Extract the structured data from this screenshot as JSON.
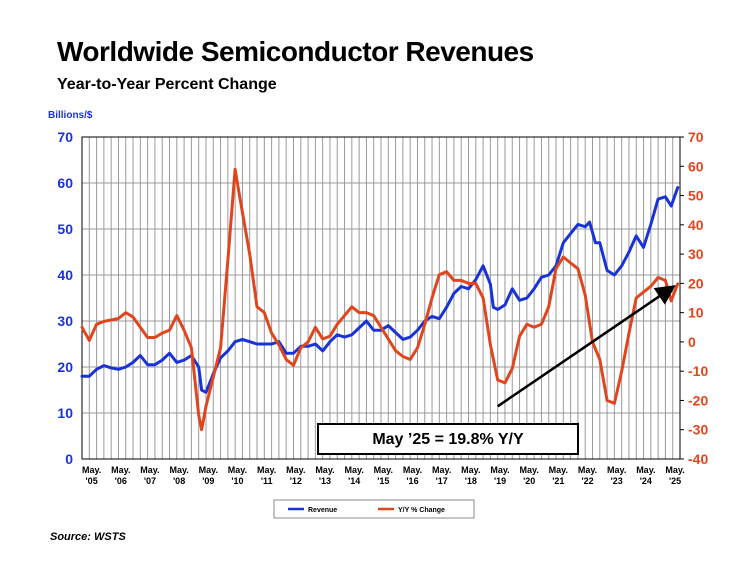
{
  "chart_data": {
    "type": "line",
    "title": "Worldwide Semiconductor Revenues",
    "subtitle": "Year-to-Year Percent Change",
    "left_axis": {
      "unit_label": "Billions/$",
      "range": [
        0,
        70
      ],
      "ticks": [
        "0",
        "10",
        "20",
        "30",
        "40",
        "50",
        "60",
        "70"
      ],
      "color": "#1a33d6"
    },
    "right_axis": {
      "range": [
        -40,
        70
      ],
      "ticks": [
        "-40",
        "-30",
        "-20",
        "-10",
        "0",
        "10",
        "20",
        "30",
        "40",
        "50",
        "60",
        "70"
      ],
      "color": "#e0461e"
    },
    "x_range": [
      2005.0,
      2025.5
    ],
    "x_ticks": [
      {
        "line1": "May.",
        "line2": "'05",
        "x": 2005.33
      },
      {
        "line1": "May.",
        "line2": "'06",
        "x": 2006.33
      },
      {
        "line1": "May.",
        "line2": "'07",
        "x": 2007.33
      },
      {
        "line1": "May.",
        "line2": "'08",
        "x": 2008.33
      },
      {
        "line1": "May.",
        "line2": "'09",
        "x": 2009.33
      },
      {
        "line1": "May.",
        "line2": "'10",
        "x": 2010.33
      },
      {
        "line1": "May.",
        "line2": "'11",
        "x": 2011.33
      },
      {
        "line1": "May.",
        "line2": "'12",
        "x": 2012.33
      },
      {
        "line1": "May.",
        "line2": "'13",
        "x": 2013.33
      },
      {
        "line1": "May.",
        "line2": "'14",
        "x": 2014.33
      },
      {
        "line1": "May.",
        "line2": "'15",
        "x": 2015.33
      },
      {
        "line1": "May.",
        "line2": "'16",
        "x": 2016.33
      },
      {
        "line1": "May.",
        "line2": "'17",
        "x": 2017.33
      },
      {
        "line1": "May.",
        "line2": "'18",
        "x": 2018.33
      },
      {
        "line1": "May.",
        "line2": "'19",
        "x": 2019.33
      },
      {
        "line1": "May.",
        "line2": "'20",
        "x": 2020.33
      },
      {
        "line1": "May.",
        "line2": "'21",
        "x": 2021.33
      },
      {
        "line1": "May.",
        "line2": "'22",
        "x": 2022.33
      },
      {
        "line1": "May.",
        "line2": "'23",
        "x": 2023.33
      },
      {
        "line1": "May.",
        "line2": "'24",
        "x": 2024.33
      },
      {
        "line1": "May.",
        "line2": "'25",
        "x": 2025.33
      }
    ],
    "grid": {
      "vertical": true,
      "horizontal": true,
      "color": "#9a9a9a"
    },
    "legend_position": "bottom-center",
    "series": [
      {
        "name": "Revenue",
        "axis": "left",
        "color": "#1a33d6",
        "points": [
          [
            2005.0,
            18
          ],
          [
            2005.25,
            18
          ],
          [
            2005.5,
            19.5
          ],
          [
            2005.75,
            20.3
          ],
          [
            2006.0,
            19.8
          ],
          [
            2006.25,
            19.5
          ],
          [
            2006.5,
            20
          ],
          [
            2006.75,
            21
          ],
          [
            2007.0,
            22.5
          ],
          [
            2007.25,
            20.5
          ],
          [
            2007.5,
            20.5
          ],
          [
            2007.75,
            21.5
          ],
          [
            2008.0,
            23
          ],
          [
            2008.25,
            21
          ],
          [
            2008.5,
            21.5
          ],
          [
            2008.75,
            22.5
          ],
          [
            2009.0,
            20
          ],
          [
            2009.1,
            15
          ],
          [
            2009.25,
            14.5
          ],
          [
            2009.5,
            18.5
          ],
          [
            2009.75,
            22
          ],
          [
            2010.0,
            23.5
          ],
          [
            2010.25,
            25.5
          ],
          [
            2010.5,
            26
          ],
          [
            2010.75,
            25.5
          ],
          [
            2011.0,
            25
          ],
          [
            2011.5,
            25
          ],
          [
            2011.75,
            25.5
          ],
          [
            2012.0,
            23
          ],
          [
            2012.25,
            23
          ],
          [
            2012.5,
            24.5
          ],
          [
            2012.75,
            24.5
          ],
          [
            2013.0,
            25
          ],
          [
            2013.25,
            23.5
          ],
          [
            2013.5,
            25.5
          ],
          [
            2013.75,
            27
          ],
          [
            2014.0,
            26.5
          ],
          [
            2014.25,
            27
          ],
          [
            2014.5,
            28.5
          ],
          [
            2014.75,
            30
          ],
          [
            2015.0,
            28
          ],
          [
            2015.25,
            28
          ],
          [
            2015.5,
            29
          ],
          [
            2015.75,
            27.5
          ],
          [
            2016.0,
            26
          ],
          [
            2016.25,
            26.5
          ],
          [
            2016.5,
            28
          ],
          [
            2016.75,
            30
          ],
          [
            2017.0,
            31
          ],
          [
            2017.25,
            30.5
          ],
          [
            2017.5,
            33
          ],
          [
            2017.75,
            36
          ],
          [
            2018.0,
            37.5
          ],
          [
            2018.25,
            37
          ],
          [
            2018.5,
            39
          ],
          [
            2018.75,
            42
          ],
          [
            2019.0,
            38
          ],
          [
            2019.1,
            33
          ],
          [
            2019.25,
            32.5
          ],
          [
            2019.5,
            33.5
          ],
          [
            2019.75,
            37
          ],
          [
            2020.0,
            34.5
          ],
          [
            2020.25,
            35
          ],
          [
            2020.5,
            37
          ],
          [
            2020.75,
            39.5
          ],
          [
            2021.0,
            40
          ],
          [
            2021.25,
            42
          ],
          [
            2021.5,
            47
          ],
          [
            2021.75,
            49
          ],
          [
            2022.0,
            51
          ],
          [
            2022.25,
            50.5
          ],
          [
            2022.4,
            51.5
          ],
          [
            2022.6,
            47
          ],
          [
            2022.75,
            47
          ],
          [
            2023.0,
            41
          ],
          [
            2023.25,
            40
          ],
          [
            2023.5,
            42
          ],
          [
            2023.75,
            45
          ],
          [
            2024.0,
            48.5
          ],
          [
            2024.25,
            46
          ],
          [
            2024.5,
            51
          ],
          [
            2024.75,
            56.5
          ],
          [
            2025.0,
            57
          ],
          [
            2025.2,
            55
          ],
          [
            2025.42,
            59
          ]
        ]
      },
      {
        "name": "Y/Y % Change",
        "axis": "right",
        "color": "#e0461e",
        "points": [
          [
            2005.0,
            5
          ],
          [
            2005.25,
            0.5
          ],
          [
            2005.5,
            6
          ],
          [
            2005.75,
            7
          ],
          [
            2006.0,
            7.5
          ],
          [
            2006.25,
            8
          ],
          [
            2006.5,
            10
          ],
          [
            2006.75,
            8.5
          ],
          [
            2007.0,
            5
          ],
          [
            2007.25,
            1.5
          ],
          [
            2007.5,
            1.5
          ],
          [
            2007.75,
            3
          ],
          [
            2008.0,
            4
          ],
          [
            2008.25,
            9
          ],
          [
            2008.5,
            4
          ],
          [
            2008.75,
            -2
          ],
          [
            2009.0,
            -25
          ],
          [
            2009.1,
            -30
          ],
          [
            2009.25,
            -22
          ],
          [
            2009.5,
            -12
          ],
          [
            2009.75,
            -2
          ],
          [
            2010.0,
            28
          ],
          [
            2010.25,
            59
          ],
          [
            2010.4,
            50
          ],
          [
            2010.75,
            30
          ],
          [
            2011.0,
            12
          ],
          [
            2011.25,
            10
          ],
          [
            2011.5,
            3
          ],
          [
            2011.75,
            -1
          ],
          [
            2012.0,
            -6
          ],
          [
            2012.25,
            -8
          ],
          [
            2012.5,
            -2
          ],
          [
            2012.75,
            0
          ],
          [
            2013.0,
            5
          ],
          [
            2013.25,
            1
          ],
          [
            2013.5,
            2
          ],
          [
            2013.75,
            6
          ],
          [
            2014.0,
            9
          ],
          [
            2014.25,
            12
          ],
          [
            2014.5,
            10
          ],
          [
            2014.75,
            10
          ],
          [
            2015.0,
            9
          ],
          [
            2015.25,
            5
          ],
          [
            2015.5,
            1
          ],
          [
            2015.75,
            -3
          ],
          [
            2016.0,
            -5
          ],
          [
            2016.25,
            -6
          ],
          [
            2016.5,
            -2
          ],
          [
            2016.75,
            6
          ],
          [
            2017.0,
            15
          ],
          [
            2017.25,
            23
          ],
          [
            2017.5,
            24
          ],
          [
            2017.75,
            21
          ],
          [
            2018.0,
            21
          ],
          [
            2018.25,
            20
          ],
          [
            2018.5,
            20
          ],
          [
            2018.75,
            15
          ],
          [
            2019.0,
            -1
          ],
          [
            2019.25,
            -13
          ],
          [
            2019.5,
            -14
          ],
          [
            2019.75,
            -9
          ],
          [
            2020.0,
            2
          ],
          [
            2020.25,
            6
          ],
          [
            2020.5,
            5
          ],
          [
            2020.75,
            6
          ],
          [
            2021.0,
            12
          ],
          [
            2021.25,
            25
          ],
          [
            2021.5,
            29
          ],
          [
            2021.75,
            27
          ],
          [
            2022.0,
            25
          ],
          [
            2022.25,
            16
          ],
          [
            2022.5,
            0
          ],
          [
            2022.75,
            -6
          ],
          [
            2023.0,
            -20
          ],
          [
            2023.25,
            -21
          ],
          [
            2023.5,
            -10
          ],
          [
            2023.75,
            3
          ],
          [
            2024.0,
            15
          ],
          [
            2024.25,
            17
          ],
          [
            2024.5,
            19
          ],
          [
            2024.75,
            22
          ],
          [
            2025.0,
            21
          ],
          [
            2025.2,
            14
          ],
          [
            2025.42,
            19.8
          ]
        ]
      }
    ],
    "annotations": [
      {
        "kind": "trend-arrow",
        "from": [
          2019.25,
          -22
        ],
        "to": [
          2025.35,
          19.8
        ],
        "axis": "right"
      },
      {
        "kind": "callout",
        "text": "May ’25 = 19.8% Y/Y"
      }
    ]
  },
  "source_note": "Source: WSTS"
}
